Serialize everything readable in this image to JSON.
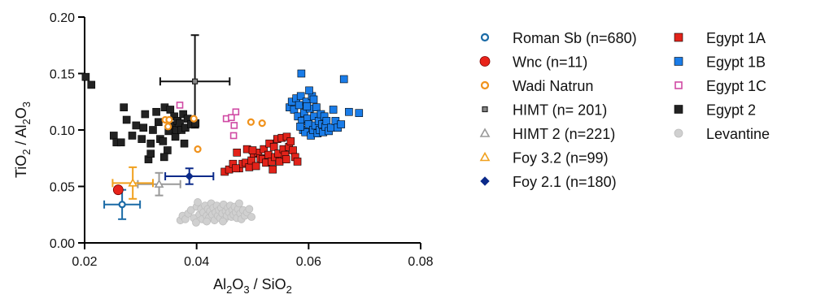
{
  "chart_data": {
    "type": "scatter",
    "title": "",
    "xlabel": {
      "p1": "Al",
      "s1": "2",
      "p2": "O",
      "s2": "3",
      "p3": " / SiO",
      "s3": "2"
    },
    "ylabel": {
      "p1": "TiO",
      "s1": "2",
      "p2": " / Al",
      "s2": "2",
      "p3": "O",
      "s3": "3"
    },
    "xlim": [
      0.02,
      0.08
    ],
    "ylim": [
      0.0,
      0.2
    ],
    "xticks": [
      "0.02",
      "0.04",
      "0.06",
      "0.08"
    ],
    "yticks": [
      "0.00",
      "0.05",
      "0.10",
      "0.15",
      "0.20"
    ],
    "legend_position": "right",
    "series": [
      {
        "name": "Roman Sb (n=680)",
        "marker": "circle-open",
        "color": "#1a6aa6",
        "points": [
          [
            0.0267,
            0.034
          ]
        ],
        "errors": [
          {
            "x": 0.0267,
            "y": 0.034,
            "xerr": 0.0032,
            "yerr": 0.013
          }
        ]
      },
      {
        "name": "Wnc (n=11)",
        "marker": "circle-filled",
        "color": "#e8231a",
        "points": [
          [
            0.026,
            0.047
          ]
        ]
      },
      {
        "name": "Wadi Natrun",
        "marker": "circle-open",
        "color": "#f0921c",
        "points": [
          [
            0.0344,
            0.109
          ],
          [
            0.0351,
            0.109
          ],
          [
            0.0349,
            0.103
          ],
          [
            0.0395,
            0.11
          ],
          [
            0.0402,
            0.083
          ],
          [
            0.0497,
            0.107
          ],
          [
            0.0517,
            0.106
          ]
        ]
      },
      {
        "name": "HIMT (n= 201)",
        "marker": "square-small",
        "color": "#555555",
        "points": [
          [
            0.0397,
            0.143
          ]
        ],
        "errors": [
          {
            "x": 0.0397,
            "y": 0.143,
            "xerr": 0.0062,
            "yerr": 0.041
          }
        ]
      },
      {
        "name": "HIMT 2 (n=221)",
        "marker": "triangle-open",
        "color": "#999999",
        "points": [
          [
            0.0333,
            0.052
          ]
        ],
        "errors": [
          {
            "x": 0.0333,
            "y": 0.052,
            "xerr": 0.0038,
            "yerr": 0.01
          }
        ]
      },
      {
        "name": "Foy 3.2 (n=99)",
        "marker": "triangle-open",
        "color": "#f0a01c",
        "points": [
          [
            0.0286,
            0.053
          ]
        ],
        "errors": [
          {
            "x": 0.0286,
            "y": 0.053,
            "xerr": 0.0036,
            "yerr": 0.014
          }
        ]
      },
      {
        "name": "Foy 2.1 (n=180)",
        "marker": "diamond-filled",
        "color": "#0b2a8a",
        "points": [
          [
            0.0387,
            0.059
          ]
        ],
        "errors": [
          {
            "x": 0.0387,
            "y": 0.059,
            "xerr": 0.0043,
            "yerr": 0.007
          }
        ]
      },
      {
        "name": "Egypt 1A",
        "marker": "square-filled",
        "color": "#e2231a",
        "points": [
          [
            0.045,
            0.063
          ],
          [
            0.0458,
            0.065
          ],
          [
            0.0465,
            0.07
          ],
          [
            0.0472,
            0.08
          ],
          [
            0.0476,
            0.066
          ],
          [
            0.0482,
            0.07
          ],
          [
            0.0488,
            0.071
          ],
          [
            0.049,
            0.083
          ],
          [
            0.0494,
            0.067
          ],
          [
            0.0498,
            0.073
          ],
          [
            0.0502,
            0.079
          ],
          [
            0.0506,
            0.068
          ],
          [
            0.051,
            0.08
          ],
          [
            0.0514,
            0.075
          ],
          [
            0.0518,
            0.074
          ],
          [
            0.052,
            0.083
          ],
          [
            0.0524,
            0.071
          ],
          [
            0.0528,
            0.078
          ],
          [
            0.053,
            0.088
          ],
          [
            0.0534,
            0.072
          ],
          [
            0.0538,
            0.085
          ],
          [
            0.054,
            0.076
          ],
          [
            0.0544,
            0.092
          ],
          [
            0.0546,
            0.079
          ],
          [
            0.0548,
            0.072
          ],
          [
            0.0552,
            0.093
          ],
          [
            0.0555,
            0.083
          ],
          [
            0.0558,
            0.078
          ],
          [
            0.0561,
            0.094
          ],
          [
            0.0565,
            0.085
          ],
          [
            0.0568,
            0.09
          ],
          [
            0.0572,
            0.082
          ],
          [
            0.0576,
            0.076
          ],
          [
            0.058,
            0.072
          ],
          [
            0.047,
            0.066
          ],
          [
            0.05,
            0.082
          ],
          [
            0.0536,
            0.065
          ],
          [
            0.056,
            0.074
          ]
        ]
      },
      {
        "name": "Egypt 1B",
        "marker": "square-filled",
        "color": "#1a7ce8",
        "points": [
          [
            0.0566,
            0.12
          ],
          [
            0.057,
            0.125
          ],
          [
            0.0574,
            0.118
          ],
          [
            0.0578,
            0.128
          ],
          [
            0.0581,
            0.112
          ],
          [
            0.0583,
            0.122
          ],
          [
            0.0586,
            0.13
          ],
          [
            0.0588,
            0.108
          ],
          [
            0.059,
            0.1
          ],
          [
            0.0592,
            0.115
          ],
          [
            0.0594,
            0.098
          ],
          [
            0.0596,
            0.125
          ],
          [
            0.0598,
            0.11
          ],
          [
            0.06,
            0.105
          ],
          [
            0.0602,
            0.119
          ],
          [
            0.0604,
            0.095
          ],
          [
            0.0606,
            0.13
          ],
          [
            0.0608,
            0.1
          ],
          [
            0.061,
            0.112
          ],
          [
            0.0612,
            0.104
          ],
          [
            0.0614,
            0.12
          ],
          [
            0.0616,
            0.097
          ],
          [
            0.0618,
            0.108
          ],
          [
            0.062,
            0.1
          ],
          [
            0.0622,
            0.114
          ],
          [
            0.0624,
            0.105
          ],
          [
            0.0626,
            0.098
          ],
          [
            0.0628,
            0.112
          ],
          [
            0.063,
            0.103
          ],
          [
            0.0632,
            0.108
          ],
          [
            0.0636,
            0.099
          ],
          [
            0.064,
            0.102
          ],
          [
            0.0644,
            0.118
          ],
          [
            0.0648,
            0.108
          ],
          [
            0.0652,
            0.102
          ],
          [
            0.0658,
            0.105
          ],
          [
            0.0663,
            0.145
          ],
          [
            0.0672,
            0.116
          ],
          [
            0.069,
            0.115
          ],
          [
            0.0587,
            0.15
          ],
          [
            0.0601,
            0.135
          ],
          [
            0.0609,
            0.127
          ],
          [
            0.0597,
            0.121
          ],
          [
            0.0585,
            0.103
          ]
        ]
      },
      {
        "name": "Egypt 1C",
        "marker": "square-open",
        "color": "#d04aa4",
        "points": [
          [
            0.037,
            0.122
          ],
          [
            0.0453,
            0.11
          ],
          [
            0.0462,
            0.111
          ],
          [
            0.0467,
            0.104
          ],
          [
            0.0466,
            0.095
          ],
          [
            0.047,
            0.116
          ]
        ]
      },
      {
        "name": "Egypt 2",
        "marker": "square-filled",
        "color": "#222222",
        "points": [
          [
            0.0202,
            0.147
          ],
          [
            0.0212,
            0.14
          ],
          [
            0.0252,
            0.095
          ],
          [
            0.0257,
            0.089
          ],
          [
            0.0265,
            0.089
          ],
          [
            0.027,
            0.12
          ],
          [
            0.0275,
            0.109
          ],
          [
            0.0285,
            0.095
          ],
          [
            0.0292,
            0.104
          ],
          [
            0.0302,
            0.092
          ],
          [
            0.0308,
            0.114
          ],
          [
            0.0314,
            0.074
          ],
          [
            0.0318,
            0.088
          ],
          [
            0.0322,
            0.1
          ],
          [
            0.0328,
            0.116
          ],
          [
            0.0332,
            0.107
          ],
          [
            0.0335,
            0.092
          ],
          [
            0.034,
            0.09
          ],
          [
            0.0343,
            0.12
          ],
          [
            0.0348,
            0.082
          ],
          [
            0.035,
            0.099
          ],
          [
            0.0353,
            0.118
          ],
          [
            0.0356,
            0.104
          ],
          [
            0.036,
            0.112
          ],
          [
            0.0362,
            0.094
          ],
          [
            0.0364,
            0.1
          ],
          [
            0.0366,
            0.108
          ],
          [
            0.037,
            0.106
          ],
          [
            0.0373,
            0.1
          ],
          [
            0.0376,
            0.114
          ],
          [
            0.038,
            0.102
          ],
          [
            0.0384,
            0.11
          ],
          [
            0.039,
            0.105
          ],
          [
            0.0398,
            0.106
          ],
          [
            0.0342,
            0.076
          ],
          [
            0.0378,
            0.088
          ],
          [
            0.0318,
            0.079
          ],
          [
            0.0305,
            0.102
          ]
        ]
      },
      {
        "name": "Levantine",
        "marker": "circle-filled",
        "color": "#d0d0d0",
        "points": [
          [
            0.0371,
            0.02
          ],
          [
            0.0375,
            0.024
          ],
          [
            0.038,
            0.021
          ],
          [
            0.0385,
            0.026
          ],
          [
            0.039,
            0.029
          ],
          [
            0.0395,
            0.022
          ],
          [
            0.04,
            0.032
          ],
          [
            0.0402,
            0.036
          ],
          [
            0.0405,
            0.025
          ],
          [
            0.0408,
            0.03
          ],
          [
            0.041,
            0.021
          ],
          [
            0.0412,
            0.027
          ],
          [
            0.0415,
            0.033
          ],
          [
            0.0418,
            0.024
          ],
          [
            0.042,
            0.03
          ],
          [
            0.0422,
            0.022
          ],
          [
            0.0424,
            0.028
          ],
          [
            0.0426,
            0.035
          ],
          [
            0.0428,
            0.025
          ],
          [
            0.043,
            0.031
          ],
          [
            0.0432,
            0.02
          ],
          [
            0.0434,
            0.027
          ],
          [
            0.0436,
            0.033
          ],
          [
            0.0438,
            0.024
          ],
          [
            0.044,
            0.029
          ],
          [
            0.0442,
            0.022
          ],
          [
            0.0444,
            0.031
          ],
          [
            0.0446,
            0.026
          ],
          [
            0.0448,
            0.034
          ],
          [
            0.045,
            0.021
          ],
          [
            0.0452,
            0.028
          ],
          [
            0.0454,
            0.024
          ],
          [
            0.0456,
            0.031
          ],
          [
            0.0458,
            0.027
          ],
          [
            0.046,
            0.033
          ],
          [
            0.0462,
            0.023
          ],
          [
            0.0464,
            0.029
          ],
          [
            0.0466,
            0.025
          ],
          [
            0.0468,
            0.032
          ],
          [
            0.047,
            0.027
          ],
          [
            0.0472,
            0.022
          ],
          [
            0.0474,
            0.03
          ],
          [
            0.0476,
            0.035
          ],
          [
            0.0478,
            0.026
          ],
          [
            0.048,
            0.021
          ],
          [
            0.0483,
            0.029
          ],
          [
            0.0486,
            0.024
          ],
          [
            0.049,
            0.027
          ],
          [
            0.0494,
            0.03
          ],
          [
            0.0498,
            0.023
          ],
          [
            0.0418,
            0.019
          ],
          [
            0.0447,
            0.019
          ],
          [
            0.0399,
            0.018
          ]
        ]
      }
    ],
    "legend": {
      "columns": [
        [
          "Roman Sb (n=680)",
          "Wnc (n=11)",
          "Wadi Natrun",
          "HIMT (n= 201)",
          "HIMT 2 (n=221)",
          "Foy 3.2 (n=99)",
          "Foy 2.1 (n=180)"
        ],
        [
          "Egypt 1A",
          "Egypt 1B",
          "Egypt 1C",
          "Egypt 2",
          "Levantine"
        ]
      ]
    }
  }
}
